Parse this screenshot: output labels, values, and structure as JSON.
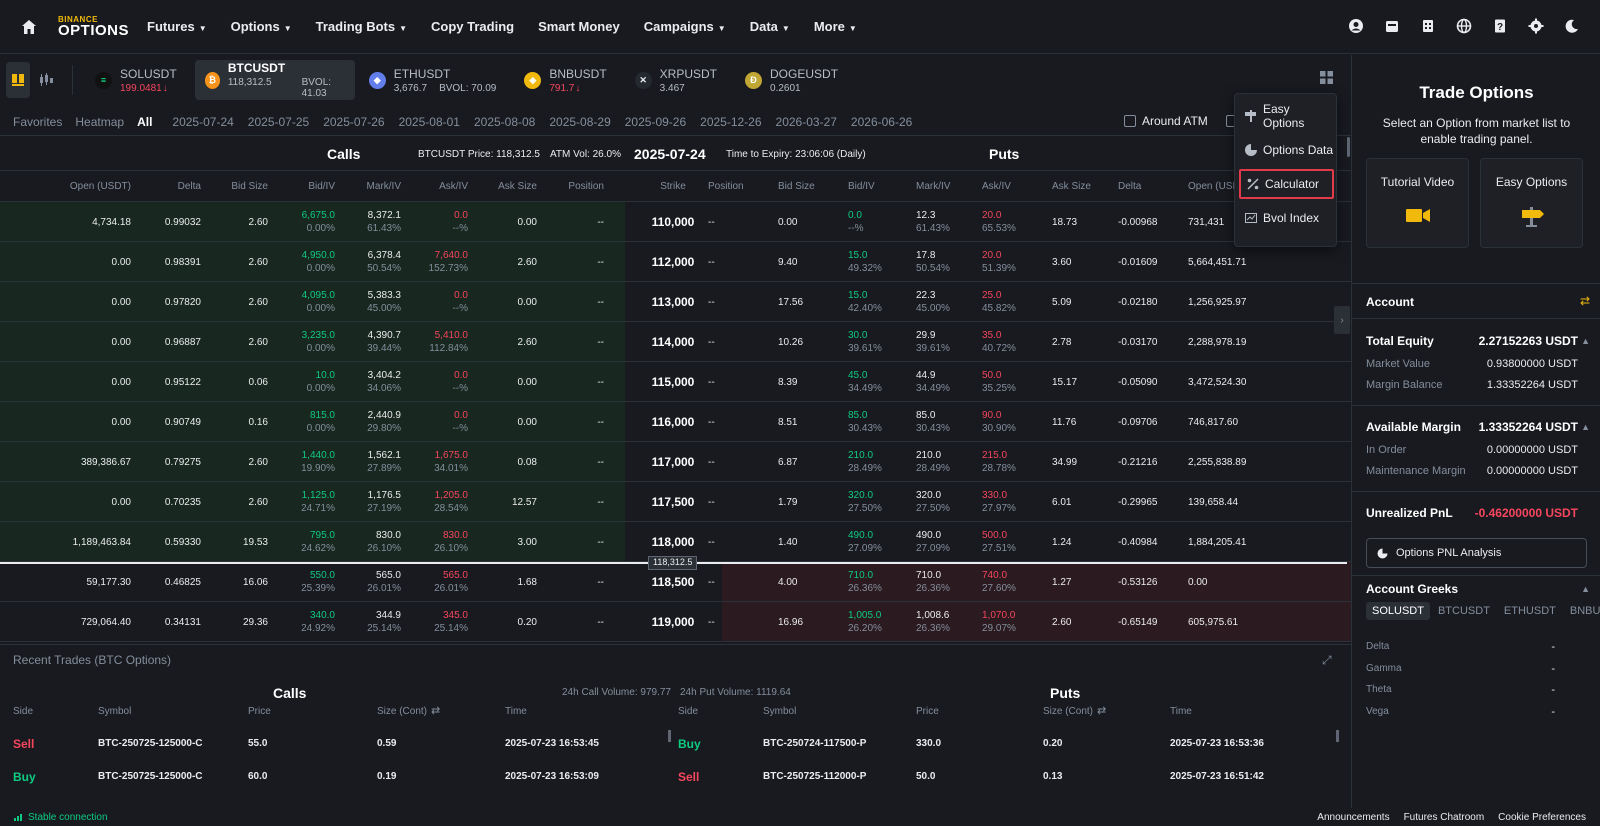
{
  "brand": {
    "top": "BINANCE",
    "bottom": "OPTIONS",
    "color": "#f0b90b"
  },
  "nav": [
    {
      "label": "Futures",
      "dropdown": true
    },
    {
      "label": "Options",
      "dropdown": true
    },
    {
      "label": "Trading Bots",
      "dropdown": true
    },
    {
      "label": "Copy Trading",
      "dropdown": false
    },
    {
      "label": "Smart Money",
      "dropdown": false
    },
    {
      "label": "Campaigns",
      "dropdown": true
    },
    {
      "label": "Data",
      "dropdown": true
    },
    {
      "label": "More",
      "dropdown": true
    }
  ],
  "tickers": [
    {
      "name": "SOLUSDT",
      "price": "199.0481",
      "dir": "down",
      "sub": "",
      "selected": false
    },
    {
      "name": "BTCUSDT",
      "price": "118,312.5",
      "dir": "none",
      "sub": "BVOL: 41.03",
      "selected": true
    },
    {
      "name": "ETHUSDT",
      "price": "3,676.7",
      "dir": "none",
      "sub": "BVOL: 70.09",
      "selected": false
    },
    {
      "name": "BNBUSDT",
      "price": "791.7",
      "dir": "down",
      "sub": "",
      "selected": false
    },
    {
      "name": "XRPUSDT",
      "price": "3.467",
      "dir": "none",
      "sub": "",
      "selected": false
    },
    {
      "name": "DOGEUSDT",
      "price": "0.2601",
      "dir": "none",
      "sub": "",
      "selected": false
    }
  ],
  "dates": {
    "favorites": "Favorites",
    "heatmap": "Heatmap",
    "all": "All",
    "list": [
      "2025-07-24",
      "2025-07-25",
      "2025-07-26",
      "2025-08-01",
      "2025-08-08",
      "2025-08-29",
      "2025-09-26",
      "2025-12-26",
      "2026-03-27",
      "2026-06-26"
    ],
    "around_atm": "Around ATM"
  },
  "chain": {
    "calls": "Calls",
    "puts": "Puts",
    "price_label": "BTCUSDT Price: 118,312.5",
    "atm_vol": "ATM Vol: 26.0%",
    "date": "2025-07-24",
    "expiry": "Time to Expiry: 23:06:06 (Daily)",
    "price_marker": "118,312.5"
  },
  "columns": {
    "calls": [
      "Open (USDT)",
      "Delta",
      "Bid Size",
      "Bid/IV",
      "Mark/IV",
      "Ask/IV",
      "Ask Size",
      "Position"
    ],
    "strike": "Strike",
    "puts": [
      "Position",
      "Bid Size",
      "Bid/IV",
      "Mark/IV",
      "Ask/IV",
      "Ask Size",
      "Delta",
      "Open (USDT)"
    ]
  },
  "rows": [
    {
      "c_open": "4,734.18",
      "c_delta": "0.99032",
      "c_bidsz": "2.60",
      "c_bid": "6,675.0",
      "c_biv": "0.00%",
      "c_mark": "8,372.1",
      "c_miv": "61.43%",
      "c_ask": "0.0",
      "c_aiv": "--%",
      "c_asksz": "0.00",
      "c_pos": "--",
      "strike": "110,000",
      "p_pos": "--",
      "p_bidsz": "0.00",
      "p_bid": "0.0",
      "p_biv": "--%",
      "p_mark": "12.3",
      "p_miv": "61.43%",
      "p_ask": "20.0",
      "p_aiv": "65.53%",
      "p_asksz": "18.73",
      "p_delta": "-0.00968",
      "p_open": "731,431"
    },
    {
      "c_open": "0.00",
      "c_delta": "0.98391",
      "c_bidsz": "2.60",
      "c_bid": "4,950.0",
      "c_biv": "0.00%",
      "c_mark": "6,378.4",
      "c_miv": "50.54%",
      "c_ask": "7,640.0",
      "c_aiv": "152.73%",
      "c_asksz": "2.60",
      "c_pos": "--",
      "strike": "112,000",
      "p_pos": "--",
      "p_bidsz": "9.40",
      "p_bid": "15.0",
      "p_biv": "49.32%",
      "p_mark": "17.8",
      "p_miv": "50.54%",
      "p_ask": "20.0",
      "p_aiv": "51.39%",
      "p_asksz": "3.60",
      "p_delta": "-0.01609",
      "p_open": "5,664,451.71"
    },
    {
      "c_open": "0.00",
      "c_delta": "0.97820",
      "c_bidsz": "2.60",
      "c_bid": "4,095.0",
      "c_biv": "0.00%",
      "c_mark": "5,383.3",
      "c_miv": "45.00%",
      "c_ask": "0.0",
      "c_aiv": "--%",
      "c_asksz": "0.00",
      "c_pos": "--",
      "strike": "113,000",
      "p_pos": "--",
      "p_bidsz": "17.56",
      "p_bid": "15.0",
      "p_biv": "42.40%",
      "p_mark": "22.3",
      "p_miv": "45.00%",
      "p_ask": "25.0",
      "p_aiv": "45.82%",
      "p_asksz": "5.09",
      "p_delta": "-0.02180",
      "p_open": "1,256,925.97"
    },
    {
      "c_open": "0.00",
      "c_delta": "0.96887",
      "c_bidsz": "2.60",
      "c_bid": "3,235.0",
      "c_biv": "0.00%",
      "c_mark": "4,390.7",
      "c_miv": "39.44%",
      "c_ask": "5,410.0",
      "c_aiv": "112.84%",
      "c_asksz": "2.60",
      "c_pos": "--",
      "strike": "114,000",
      "p_pos": "--",
      "p_bidsz": "10.26",
      "p_bid": "30.0",
      "p_biv": "39.61%",
      "p_mark": "29.9",
      "p_miv": "39.61%",
      "p_ask": "35.0",
      "p_aiv": "40.72%",
      "p_asksz": "2.78",
      "p_delta": "-0.03170",
      "p_open": "2,288,978.19"
    },
    {
      "c_open": "0.00",
      "c_delta": "0.95122",
      "c_bidsz": "0.06",
      "c_bid": "10.0",
      "c_biv": "0.00%",
      "c_mark": "3,404.2",
      "c_miv": "34.06%",
      "c_ask": "0.0",
      "c_aiv": "--%",
      "c_asksz": "0.00",
      "c_pos": "--",
      "strike": "115,000",
      "p_pos": "--",
      "p_bidsz": "8.39",
      "p_bid": "45.0",
      "p_biv": "34.49%",
      "p_mark": "44.9",
      "p_miv": "34.49%",
      "p_ask": "50.0",
      "p_aiv": "35.25%",
      "p_asksz": "15.17",
      "p_delta": "-0.05090",
      "p_open": "3,472,524.30"
    },
    {
      "c_open": "0.00",
      "c_delta": "0.90749",
      "c_bidsz": "0.16",
      "c_bid": "815.0",
      "c_biv": "0.00%",
      "c_mark": "2,440.9",
      "c_miv": "29.80%",
      "c_ask": "0.0",
      "c_aiv": "--%",
      "c_asksz": "0.00",
      "c_pos": "--",
      "strike": "116,000",
      "p_pos": "--",
      "p_bidsz": "8.51",
      "p_bid": "85.0",
      "p_biv": "30.43%",
      "p_mark": "85.0",
      "p_miv": "30.43%",
      "p_ask": "90.0",
      "p_aiv": "30.90%",
      "p_asksz": "11.76",
      "p_delta": "-0.09706",
      "p_open": "746,817.60"
    },
    {
      "c_open": "389,386.67",
      "c_delta": "0.79275",
      "c_bidsz": "2.60",
      "c_bid": "1,440.0",
      "c_biv": "19.90%",
      "c_mark": "1,562.1",
      "c_miv": "27.89%",
      "c_ask": "1,675.0",
      "c_aiv": "34.01%",
      "c_asksz": "0.08",
      "c_pos": "--",
      "strike": "117,000",
      "p_pos": "--",
      "p_bidsz": "6.87",
      "p_bid": "210.0",
      "p_biv": "28.49%",
      "p_mark": "210.0",
      "p_miv": "28.49%",
      "p_ask": "215.0",
      "p_aiv": "28.78%",
      "p_asksz": "34.99",
      "p_delta": "-0.21216",
      "p_open": "2,255,838.89"
    },
    {
      "c_open": "0.00",
      "c_delta": "0.70235",
      "c_bidsz": "2.60",
      "c_bid": "1,125.0",
      "c_biv": "24.71%",
      "c_mark": "1,176.5",
      "c_miv": "27.19%",
      "c_ask": "1,205.0",
      "c_aiv": "28.54%",
      "c_asksz": "12.57",
      "c_pos": "--",
      "strike": "117,500",
      "p_pos": "--",
      "p_bidsz": "1.79",
      "p_bid": "320.0",
      "p_biv": "27.50%",
      "p_mark": "320.0",
      "p_miv": "27.50%",
      "p_ask": "330.0",
      "p_aiv": "27.97%",
      "p_asksz": "6.01",
      "p_delta": "-0.29965",
      "p_open": "139,658.44"
    },
    {
      "c_open": "1,189,463.84",
      "c_delta": "0.59330",
      "c_bidsz": "19.53",
      "c_bid": "795.0",
      "c_biv": "24.62%",
      "c_mark": "830.0",
      "c_miv": "26.10%",
      "c_ask": "830.0",
      "c_aiv": "26.10%",
      "c_asksz": "3.00",
      "c_pos": "--",
      "strike": "118,000",
      "p_pos": "--",
      "p_bidsz": "1.40",
      "p_bid": "490.0",
      "p_biv": "27.09%",
      "p_mark": "490.0",
      "p_miv": "27.09%",
      "p_ask": "500.0",
      "p_aiv": "27.51%",
      "p_asksz": "1.24",
      "p_delta": "-0.40984",
      "p_open": "1,884,205.41"
    },
    {
      "c_open": "59,177.30",
      "c_delta": "0.46825",
      "c_bidsz": "16.06",
      "c_bid": "550.0",
      "c_biv": "25.39%",
      "c_mark": "565.0",
      "c_miv": "26.01%",
      "c_ask": "565.0",
      "c_aiv": "26.01%",
      "c_asksz": "1.68",
      "c_pos": "--",
      "strike": "118,500",
      "p_pos": "--",
      "p_bidsz": "4.00",
      "p_bid": "710.0",
      "p_biv": "26.36%",
      "p_mark": "710.0",
      "p_miv": "26.36%",
      "p_ask": "740.0",
      "p_aiv": "27.60%",
      "p_asksz": "1.27",
      "p_delta": "-0.53126",
      "p_open": "0.00"
    },
    {
      "c_open": "729,064.40",
      "c_delta": "0.34131",
      "c_bidsz": "29.36",
      "c_bid": "340.0",
      "c_biv": "24.92%",
      "c_mark": "344.9",
      "c_miv": "25.14%",
      "c_ask": "345.0",
      "c_aiv": "25.14%",
      "c_asksz": "0.20",
      "c_pos": "--",
      "strike": "119,000",
      "p_pos": "--",
      "p_bidsz": "16.96",
      "p_bid": "1,005.0",
      "p_biv": "26.20%",
      "p_mark": "1,008.6",
      "p_miv": "26.36%",
      "p_ask": "1,070.0",
      "p_aiv": "29.07%",
      "p_asksz": "2.60",
      "p_delta": "-0.65149",
      "p_open": "605,975.61"
    }
  ],
  "menu": [
    {
      "label": "Easy Options",
      "icon": "easy-options-icon"
    },
    {
      "label": "Options Data",
      "icon": "options-data-icon"
    },
    {
      "label": "Calculator",
      "icon": "calculator-icon"
    },
    {
      "label": "Bvol Index",
      "icon": "bvol-index-icon"
    }
  ],
  "recent": {
    "title": "Recent Trades (BTC Options)",
    "calls": "Calls",
    "puts": "Puts",
    "call_vol": "24h Call Volume: 979.77",
    "put_vol": "24h Put Volume: 1119.64",
    "cols": [
      "Side",
      "Symbol",
      "Price",
      "Size (Cont)",
      "Time"
    ],
    "call_rows": [
      {
        "side": "Sell",
        "symbol": "BTC-250725-125000-C",
        "price": "55.0",
        "size": "0.59",
        "time": "2025-07-23 16:53:45"
      },
      {
        "side": "Buy",
        "symbol": "BTC-250725-125000-C",
        "price": "60.0",
        "size": "0.19",
        "time": "2025-07-23 16:53:09"
      }
    ],
    "put_rows": [
      {
        "side": "Buy",
        "symbol": "BTC-250724-117500-P",
        "price": "330.0",
        "size": "0.20",
        "time": "2025-07-23 16:53:36"
      },
      {
        "side": "Sell",
        "symbol": "BTC-250725-112000-P",
        "price": "50.0",
        "size": "0.13",
        "time": "2025-07-23 16:51:42"
      }
    ]
  },
  "panel": {
    "title": "Trade Options",
    "subtitle": "Select an Option from market list to enable trading panel.",
    "tutorial": "Tutorial Video",
    "easy": "Easy Options",
    "account": "Account",
    "total_equity_label": "Total Equity",
    "total_equity": "2.27152263 USDT",
    "market_value_label": "Market Value",
    "market_value": "0.93800000 USDT",
    "margin_balance_label": "Margin Balance",
    "margin_balance": "1.33352264 USDT",
    "avail_label": "Available Margin",
    "avail": "1.33352264 USDT",
    "in_order_label": "In Order",
    "in_order": "0.00000000 USDT",
    "maint_label": "Maintenance Margin",
    "maint": "0.00000000 USDT",
    "upnl_label": "Unrealized PnL",
    "upnl": "-0.46200000 USDT",
    "pnl_btn": "Options PNL Analysis",
    "greeks_title": "Account Greeks",
    "greek_tabs": [
      "SOLUSDT",
      "BTCUSDT",
      "ETHUSDT",
      "BNBUSDT"
    ],
    "greeks": [
      {
        "name": "Delta",
        "value": "-"
      },
      {
        "name": "Gamma",
        "value": "-"
      },
      {
        "name": "Theta",
        "value": "-"
      },
      {
        "name": "Vega",
        "value": "-"
      }
    ]
  },
  "status": {
    "connection": "Stable connection",
    "links": [
      "Announcements",
      "Futures Chatroom",
      "Cookie Preferences"
    ]
  },
  "colors": {
    "green": "#0ecb81",
    "red": "#f6465d",
    "accent": "#f0b90b"
  }
}
